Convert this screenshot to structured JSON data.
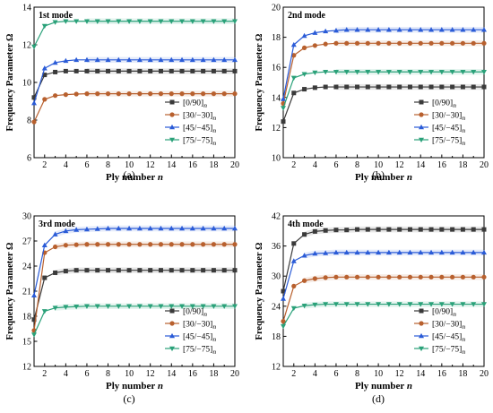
{
  "figure": {
    "legend_labels": [
      "[0/90]n",
      "[30/−30]n",
      "[45/−45]n",
      "[75/−75]n"
    ],
    "colors": [
      "#3a3a3a",
      "#b8602e",
      "#2a5bd7",
      "#2aa179"
    ],
    "markers": [
      "square",
      "circle",
      "triangle-up",
      "triangle-down"
    ]
  },
  "chart_data": [
    {
      "type": "line",
      "panel_label": "1st mode",
      "caption": "(a)",
      "xlabel": "Ply number n",
      "ylabel": "Frequency Parameter Ω",
      "xlim": [
        1,
        20
      ],
      "ylim": [
        6,
        14
      ],
      "xticks": [
        2,
        4,
        6,
        8,
        10,
        12,
        14,
        16,
        18,
        20
      ],
      "yticks": [
        6,
        8,
        10,
        12,
        14
      ],
      "grid": false,
      "legend_position": "bottom-right",
      "x": [
        1,
        2,
        3,
        4,
        5,
        6,
        7,
        8,
        9,
        10,
        11,
        12,
        13,
        14,
        15,
        16,
        17,
        18,
        19,
        20
      ],
      "series": [
        {
          "name": "[0/90]n",
          "values": [
            9.2,
            10.4,
            10.55,
            10.6,
            10.6,
            10.6,
            10.6,
            10.6,
            10.6,
            10.6,
            10.6,
            10.6,
            10.6,
            10.6,
            10.6,
            10.6,
            10.6,
            10.6,
            10.6,
            10.6
          ]
        },
        {
          "name": "[30/−30]n",
          "values": [
            7.9,
            9.1,
            9.3,
            9.35,
            9.38,
            9.4,
            9.4,
            9.4,
            9.4,
            9.4,
            9.4,
            9.4,
            9.4,
            9.4,
            9.4,
            9.4,
            9.4,
            9.4,
            9.4,
            9.4
          ]
        },
        {
          "name": "[45/−45]n",
          "values": [
            8.9,
            10.75,
            11.05,
            11.15,
            11.2,
            11.2,
            11.2,
            11.2,
            11.2,
            11.2,
            11.2,
            11.2,
            11.2,
            11.2,
            11.2,
            11.2,
            11.2,
            11.2,
            11.2,
            11.2
          ]
        },
        {
          "name": "[75/−75]n",
          "values": [
            11.9,
            13.0,
            13.2,
            13.25,
            13.25,
            13.25,
            13.25,
            13.25,
            13.25,
            13.25,
            13.25,
            13.25,
            13.25,
            13.25,
            13.25,
            13.25,
            13.25,
            13.25,
            13.25,
            13.25
          ]
        }
      ]
    },
    {
      "type": "line",
      "panel_label": "2nd mode",
      "caption": "(b)",
      "xlabel": "Ply number n",
      "ylabel": "Frequency Parameter Ω",
      "xlim": [
        1,
        20
      ],
      "ylim": [
        10,
        20
      ],
      "xticks": [
        2,
        4,
        6,
        8,
        10,
        12,
        14,
        16,
        18,
        20
      ],
      "yticks": [
        10,
        12,
        14,
        16,
        18,
        20
      ],
      "grid": false,
      "legend_position": "bottom-right",
      "x": [
        1,
        2,
        3,
        4,
        5,
        6,
        7,
        8,
        9,
        10,
        11,
        12,
        13,
        14,
        15,
        16,
        17,
        18,
        19,
        20
      ],
      "series": [
        {
          "name": "[0/90]n",
          "values": [
            12.4,
            14.3,
            14.55,
            14.65,
            14.7,
            14.7,
            14.7,
            14.7,
            14.7,
            14.7,
            14.7,
            14.7,
            14.7,
            14.7,
            14.7,
            14.7,
            14.7,
            14.7,
            14.7,
            14.7
          ]
        },
        {
          "name": "[30/−30]n",
          "values": [
            13.6,
            16.8,
            17.3,
            17.45,
            17.55,
            17.6,
            17.6,
            17.6,
            17.6,
            17.6,
            17.6,
            17.6,
            17.6,
            17.6,
            17.6,
            17.6,
            17.6,
            17.6,
            17.6,
            17.6
          ]
        },
        {
          "name": "[45/−45]n",
          "values": [
            13.9,
            17.5,
            18.1,
            18.3,
            18.4,
            18.45,
            18.5,
            18.5,
            18.5,
            18.5,
            18.5,
            18.5,
            18.5,
            18.5,
            18.5,
            18.5,
            18.5,
            18.5,
            18.5,
            18.5
          ]
        },
        {
          "name": "[75/−75]n",
          "values": [
            13.3,
            15.3,
            15.55,
            15.65,
            15.7,
            15.7,
            15.7,
            15.7,
            15.7,
            15.7,
            15.7,
            15.7,
            15.7,
            15.7,
            15.7,
            15.7,
            15.7,
            15.7,
            15.7,
            15.7
          ]
        }
      ]
    },
    {
      "type": "line",
      "panel_label": "3rd mode",
      "caption": "(c)",
      "xlabel": "Ply number n",
      "ylabel": "Frequency Parameter Ω",
      "xlim": [
        1,
        20
      ],
      "ylim": [
        12,
        30
      ],
      "xticks": [
        2,
        4,
        6,
        8,
        10,
        12,
        14,
        16,
        18,
        20
      ],
      "yticks": [
        12,
        15,
        18,
        21,
        24,
        27,
        30
      ],
      "grid": false,
      "legend_position": "bottom-right",
      "x": [
        1,
        2,
        3,
        4,
        5,
        6,
        7,
        8,
        9,
        10,
        11,
        12,
        13,
        14,
        15,
        16,
        17,
        18,
        19,
        20
      ],
      "series": [
        {
          "name": "[0/90]n",
          "values": [
            17.6,
            22.6,
            23.2,
            23.4,
            23.5,
            23.5,
            23.5,
            23.5,
            23.5,
            23.5,
            23.5,
            23.5,
            23.5,
            23.5,
            23.5,
            23.5,
            23.5,
            23.5,
            23.5,
            23.5
          ]
        },
        {
          "name": "[30/−30]n",
          "values": [
            16.3,
            25.6,
            26.3,
            26.5,
            26.55,
            26.6,
            26.6,
            26.6,
            26.6,
            26.6,
            26.6,
            26.6,
            26.6,
            26.6,
            26.6,
            26.6,
            26.6,
            26.6,
            26.6,
            26.6
          ]
        },
        {
          "name": "[45/−45]n",
          "values": [
            20.5,
            26.5,
            27.8,
            28.2,
            28.35,
            28.4,
            28.45,
            28.5,
            28.5,
            28.5,
            28.5,
            28.5,
            28.5,
            28.5,
            28.5,
            28.5,
            28.5,
            28.5,
            28.5,
            28.5
          ]
        },
        {
          "name": "[75/−75]n",
          "values": [
            15.8,
            18.6,
            19.0,
            19.1,
            19.15,
            19.2,
            19.2,
            19.2,
            19.2,
            19.2,
            19.2,
            19.2,
            19.2,
            19.2,
            19.2,
            19.2,
            19.2,
            19.2,
            19.2,
            19.2
          ]
        }
      ]
    },
    {
      "type": "line",
      "panel_label": "4th mode",
      "caption": "(d)",
      "xlabel": "Ply number n",
      "ylabel": "Frequency Parameter Ω",
      "xlim": [
        1,
        20
      ],
      "ylim": [
        12,
        42
      ],
      "xticks": [
        2,
        4,
        6,
        8,
        10,
        12,
        14,
        16,
        18,
        20
      ],
      "yticks": [
        12,
        18,
        24,
        30,
        36,
        42
      ],
      "grid": false,
      "legend_position": "bottom-right",
      "x": [
        1,
        2,
        3,
        4,
        5,
        6,
        7,
        8,
        9,
        10,
        11,
        12,
        13,
        14,
        15,
        16,
        17,
        18,
        19,
        20
      ],
      "series": [
        {
          "name": "[0/90]n",
          "values": [
            27.0,
            36.5,
            38.3,
            38.9,
            39.1,
            39.2,
            39.2,
            39.3,
            39.3,
            39.3,
            39.3,
            39.3,
            39.3,
            39.3,
            39.3,
            39.3,
            39.3,
            39.3,
            39.3,
            39.3
          ]
        },
        {
          "name": "[30/−30]n",
          "values": [
            21.0,
            28.0,
            29.1,
            29.5,
            29.7,
            29.8,
            29.8,
            29.8,
            29.8,
            29.8,
            29.8,
            29.8,
            29.8,
            29.8,
            29.8,
            29.8,
            29.8,
            29.8,
            29.8,
            29.8
          ]
        },
        {
          "name": "[45/−45]n",
          "values": [
            25.5,
            33.0,
            34.1,
            34.5,
            34.6,
            34.7,
            34.7,
            34.7,
            34.7,
            34.7,
            34.7,
            34.7,
            34.7,
            34.7,
            34.7,
            34.7,
            34.7,
            34.7,
            34.7,
            34.7
          ]
        },
        {
          "name": "[75/−75]n",
          "values": [
            20.0,
            23.6,
            24.1,
            24.3,
            24.4,
            24.4,
            24.4,
            24.4,
            24.4,
            24.4,
            24.4,
            24.4,
            24.4,
            24.4,
            24.4,
            24.4,
            24.4,
            24.4,
            24.4,
            24.4
          ]
        }
      ]
    }
  ]
}
